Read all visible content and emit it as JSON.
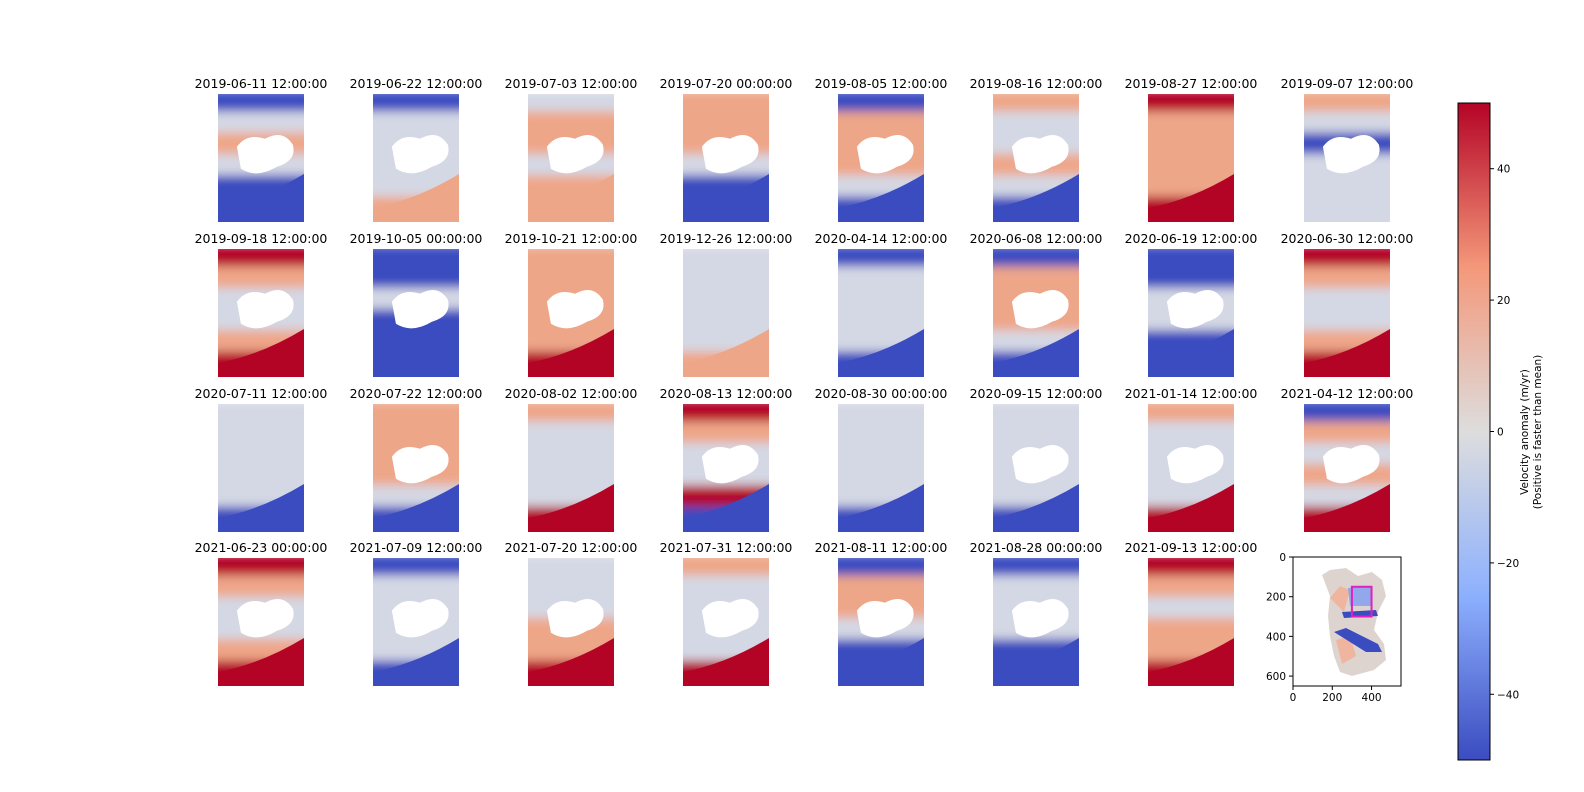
{
  "chart_data": {
    "type": "heatmap",
    "colormap": "coolwarm",
    "panels": [
      {
        "title": "2019-06-11 12:00:00",
        "pattern": [
          -1,
          0,
          1,
          0,
          -1,
          -1
        ],
        "gap": true
      },
      {
        "title": "2019-06-22 12:00:00",
        "pattern": [
          -1,
          0,
          0,
          0,
          0,
          1
        ],
        "gap": true
      },
      {
        "title": "2019-07-03 12:00:00",
        "pattern": [
          0,
          1,
          1,
          0,
          1,
          1
        ],
        "gap": true
      },
      {
        "title": "2019-07-20 00:00:00",
        "pattern": [
          1,
          1,
          1,
          0,
          -1,
          -1
        ],
        "gap": true
      },
      {
        "title": "2019-08-05 12:00:00",
        "pattern": [
          -1,
          1,
          1,
          1,
          0,
          -1
        ],
        "gap": true
      },
      {
        "title": "2019-08-16 12:00:00",
        "pattern": [
          1,
          0,
          0,
          1,
          0,
          -1
        ],
        "gap": true
      },
      {
        "title": "2019-08-27 12:00:00",
        "pattern": [
          2,
          1,
          1,
          1,
          1,
          2
        ],
        "gap": false
      },
      {
        "title": "2019-09-07 12:00:00",
        "pattern": [
          1,
          0,
          -1,
          0,
          0,
          0
        ],
        "gap": true
      },
      {
        "title": "2019-09-18 12:00:00",
        "pattern": [
          2,
          1,
          0,
          0,
          1,
          2
        ],
        "gap": true
      },
      {
        "title": "2019-10-05 00:00:00",
        "pattern": [
          -1,
          -1,
          0,
          -1,
          -1,
          -1
        ],
        "gap": true
      },
      {
        "title": "2019-10-21 12:00:00",
        "pattern": [
          1,
          1,
          1,
          1,
          1,
          2
        ],
        "gap": true
      },
      {
        "title": "2019-12-26 12:00:00",
        "pattern": [
          0,
          0,
          0,
          0,
          0,
          1
        ],
        "gap": false
      },
      {
        "title": "2020-04-14 12:00:00",
        "pattern": [
          -1,
          0,
          0,
          0,
          0,
          -1
        ],
        "gap": false
      },
      {
        "title": "2020-06-08 12:00:00",
        "pattern": [
          -1,
          1,
          1,
          1,
          0,
          -1
        ],
        "gap": true
      },
      {
        "title": "2020-06-19 12:00:00",
        "pattern": [
          -1,
          -1,
          0,
          0,
          -1,
          -1
        ],
        "gap": true
      },
      {
        "title": "2020-06-30 12:00:00",
        "pattern": [
          2,
          1,
          0,
          0,
          1,
          2
        ],
        "gap": false
      },
      {
        "title": "2020-07-11 12:00:00",
        "pattern": [
          0,
          0,
          0,
          0,
          0,
          -1
        ],
        "gap": false
      },
      {
        "title": "2020-07-22 12:00:00",
        "pattern": [
          1,
          1,
          1,
          1,
          0,
          -1
        ],
        "gap": true
      },
      {
        "title": "2020-08-02 12:00:00",
        "pattern": [
          1,
          0,
          0,
          0,
          0,
          2
        ],
        "gap": false
      },
      {
        "title": "2020-08-13 12:00:00",
        "pattern": [
          2,
          1,
          0,
          0,
          2,
          -1
        ],
        "gap": true
      },
      {
        "title": "2020-08-30 00:00:00",
        "pattern": [
          0,
          0,
          0,
          0,
          0,
          -1
        ],
        "gap": false
      },
      {
        "title": "2020-09-15 12:00:00",
        "pattern": [
          0,
          0,
          0,
          0,
          0,
          -1
        ],
        "gap": true
      },
      {
        "title": "2021-01-14 12:00:00",
        "pattern": [
          1,
          0,
          0,
          0,
          0,
          2
        ],
        "gap": true
      },
      {
        "title": "2021-04-12 12:00:00",
        "pattern": [
          -1,
          1,
          0,
          1,
          0,
          2
        ],
        "gap": true
      },
      {
        "title": "2021-06-23 00:00:00",
        "pattern": [
          2,
          1,
          0,
          0,
          1,
          2
        ],
        "gap": true
      },
      {
        "title": "2021-07-09 12:00:00",
        "pattern": [
          -1,
          0,
          0,
          0,
          0,
          -1
        ],
        "gap": true
      },
      {
        "title": "2021-07-20 12:00:00",
        "pattern": [
          0,
          0,
          0,
          1,
          1,
          2
        ],
        "gap": true
      },
      {
        "title": "2021-07-31 12:00:00",
        "pattern": [
          1,
          0,
          0,
          0,
          0,
          2
        ],
        "gap": true
      },
      {
        "title": "2021-08-11 12:00:00",
        "pattern": [
          -1,
          1,
          1,
          0,
          -1,
          -1
        ],
        "gap": true
      },
      {
        "title": "2021-08-28 00:00:00",
        "pattern": [
          -1,
          0,
          0,
          0,
          -1,
          -1
        ],
        "gap": true
      },
      {
        "title": "2021-09-13 12:00:00",
        "pattern": [
          2,
          1,
          0,
          1,
          1,
          2
        ],
        "gap": false
      }
    ],
    "overview": {
      "xlim": [
        0,
        550
      ],
      "ylim": [
        650,
        0
      ],
      "xticks": [
        "0",
        "200",
        "400"
      ],
      "yticks": [
        "0",
        "200",
        "400",
        "600"
      ],
      "box": {
        "x0": 300,
        "x1": 400,
        "y0": 150,
        "y1": 300
      },
      "box_color": "#e020c0"
    },
    "colorbar": {
      "min": -50,
      "max": 50,
      "ticks": [
        "40",
        "20",
        "0",
        "−20",
        "−40"
      ],
      "tick_values": [
        40,
        20,
        0,
        -20,
        -40
      ],
      "label_line1": "Velocity anomaly (m/yr)",
      "label_line2": "(Positive is faster than mean)"
    }
  }
}
